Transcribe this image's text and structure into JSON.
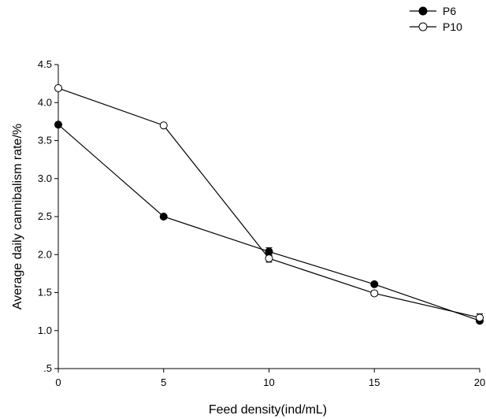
{
  "chart_data": {
    "type": "line",
    "title": "",
    "xlabel": "Feed density(ind/mL)",
    "ylabel": "Average daily cannibalism rate/%",
    "x": [
      0,
      5,
      10,
      15,
      20
    ],
    "xlim": [
      0,
      20
    ],
    "ylim": [
      0.5,
      4.5
    ],
    "x_ticks": [
      "0",
      "5",
      "10",
      "15",
      "20"
    ],
    "y_ticks": [
      ".5",
      "1.0",
      "1.5",
      "2.0",
      "2.5",
      "3.0",
      "3.5",
      "4.0",
      "4.5"
    ],
    "grid": false,
    "legend_position": "top-right",
    "series": [
      {
        "name": "P6",
        "marker": "filled-circle",
        "color": "#000000",
        "values": [
          3.71,
          2.5,
          2.04,
          1.61,
          1.13
        ],
        "errors": [
          0.03,
          0.02,
          0.05,
          0.02,
          0.03
        ]
      },
      {
        "name": "P10",
        "marker": "open-circle",
        "color": "#000000",
        "values": [
          4.19,
          3.7,
          1.95,
          1.49,
          1.17
        ],
        "errors": [
          0.03,
          0.02,
          0.05,
          0.03,
          0.05
        ]
      }
    ]
  }
}
